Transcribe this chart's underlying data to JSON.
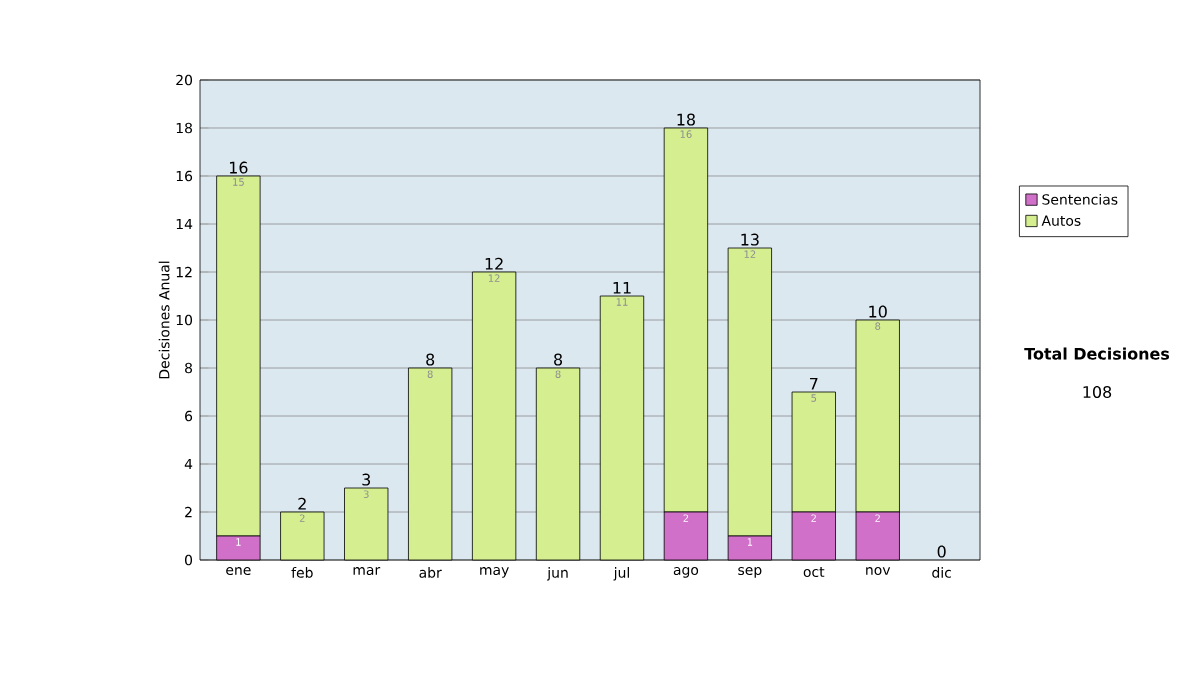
{
  "chart_data": {
    "type": "bar",
    "stacked": true,
    "ylabel": "Decisiones Anual",
    "categories": [
      "ene",
      "feb",
      "mar",
      "abr",
      "may",
      "jun",
      "jul",
      "ago",
      "sep",
      "oct",
      "nov",
      "dic"
    ],
    "series": [
      {
        "name": "Sentencias",
        "color": "#d070c8",
        "values": [
          1,
          0,
          0,
          0,
          0,
          0,
          0,
          2,
          1,
          2,
          2,
          0
        ],
        "value_labels": [
          "1",
          null,
          null,
          null,
          null,
          null,
          null,
          "2",
          "1",
          "2",
          "2",
          null
        ]
      },
      {
        "name": "Autos",
        "color": "#d4ee90",
        "values": [
          15,
          2,
          3,
          8,
          12,
          8,
          11,
          16,
          12,
          5,
          8,
          0
        ],
        "value_labels": [
          "15",
          "2",
          "3",
          "8",
          "12",
          "8",
          "11",
          "16",
          "12",
          "5",
          "8",
          null
        ]
      }
    ],
    "totals": [
      "16",
      "2",
      "3",
      "8",
      "12",
      "8",
      "11",
      "18",
      "13",
      "7",
      "10",
      "0"
    ],
    "ylim": [
      0,
      20
    ],
    "yticks": [
      0,
      2,
      4,
      6,
      8,
      10,
      12,
      14,
      16,
      18,
      20
    ],
    "grid": "y",
    "legend": "right",
    "annotations": [
      "Total Decisiones",
      "108"
    ]
  }
}
